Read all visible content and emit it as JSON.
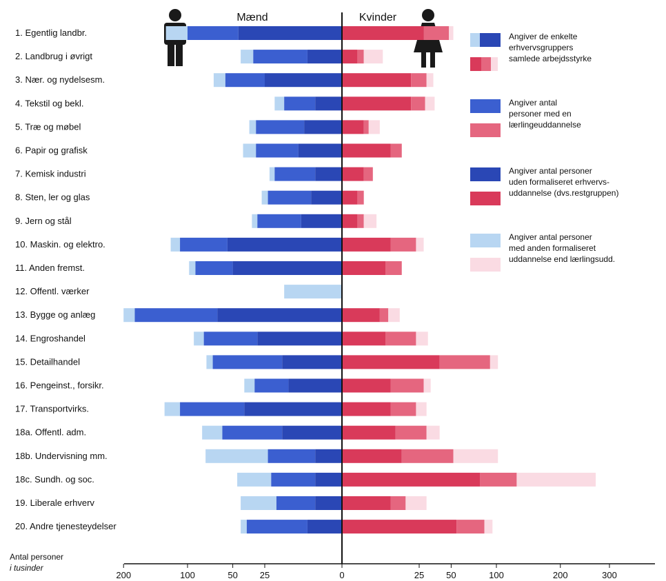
{
  "chart_data": {
    "type": "bar",
    "orientation": "horizontal-diverging",
    "left_title": "Mænd",
    "right_title": "Kvinder",
    "axis_title_line1": "Antal personer",
    "axis_title_line2": "i tusinder",
    "xscale": "sqrt",
    "left_ticks": [
      "200",
      "100",
      "50",
      "25",
      "0"
    ],
    "left_tick_values": [
      200,
      100,
      50,
      25,
      0
    ],
    "right_ticks": [
      "25",
      "50",
      "100",
      "200",
      "300"
    ],
    "right_tick_values": [
      25,
      50,
      100,
      200,
      300
    ],
    "categories": [
      "1. Egentlig landbr.",
      "2. Landbrug i øvrigt",
      "3. Nær. og nydelsesm.",
      "4. Tekstil og bekl.",
      "5. Træ og møbel",
      "6. Papir og grafisk",
      "7. Kemisk industri",
      "8. Sten, ler og glas",
      "9. Jern og stål",
      "10. Maskin. og elektro.",
      "11. Anden fremst.",
      "12. Offentl. værker",
      "13. Bygge og anlæg",
      "14. Engroshandel",
      "15. Detailhandel",
      "16. Pengeinst., forsikr.",
      "17. Transportvirks.",
      "18a. Offentl. adm.",
      "18b. Undervisning mm.",
      "18c. Sundh. og soc.",
      "19. Liberale erhverv",
      "20. Andre tjenesteydelser"
    ],
    "series": [
      {
        "group": "men",
        "component": "restgruppe",
        "values": [
          45,
          5,
          25,
          3,
          6,
          8,
          3,
          4,
          7,
          55,
          50,
          0,
          65,
          30,
          15,
          12,
          40,
          15,
          3,
          3,
          3,
          5
        ]
      },
      {
        "group": "men",
        "component": "laerlingeuddannelse",
        "values": [
          55,
          28,
          32,
          11,
          25,
          23,
          16,
          19,
          23,
          55,
          40,
          0,
          115,
          50,
          55,
          20,
          70,
          45,
          20,
          18,
          15,
          33
        ]
      },
      {
        "group": "men",
        "component": "anden formaliseret uddannelse",
        "values": [
          30,
          10,
          12,
          5,
          5,
          10,
          3,
          4,
          4,
          13,
          8,
          14,
          20,
          12,
          7,
          8,
          22,
          22,
          55,
          25,
          25,
          5
        ]
      },
      {
        "group": "women",
        "component": "restgruppe",
        "values": [
          28,
          1,
          20,
          20,
          2,
          10,
          2,
          1,
          1,
          10,
          8,
          0,
          6,
          8,
          40,
          10,
          10,
          12,
          15,
          80,
          10,
          55
        ]
      },
      {
        "group": "women",
        "component": "laerlingeuddannelse",
        "values": [
          20,
          1,
          10,
          9,
          1,
          5,
          2,
          1,
          1,
          13,
          7,
          0,
          3,
          15,
          52,
          18,
          13,
          18,
          37,
          48,
          7,
          30
        ]
      },
      {
        "group": "women",
        "component": "anden formaliseret uddannelse",
        "values": [
          4,
          5,
          5,
          7,
          3,
          0,
          0,
          0,
          3,
          5,
          0,
          0,
          5,
          8,
          10,
          5,
          7,
          10,
          50,
          142,
          13,
          10
        ]
      }
    ],
    "colors": {
      "men_rest": "#2a47b5",
      "men_laerling": "#3b5fd0",
      "men_anden": "#b8d6f2",
      "women_rest": "#d93a5a",
      "women_laerling": "#e5667f",
      "women_anden": "#fadbe3"
    },
    "legend": [
      {
        "label_lines": [
          "Angiver de enkelte",
          "erhvervsgruppers",
          "samlede arbejdsstyrke"
        ],
        "swatch": "full"
      },
      {
        "label_lines": [
          "Angiver antal",
          "personer med en",
          "lærlingeuddannelse"
        ],
        "swatch": "laerling"
      },
      {
        "label_lines": [
          "Angiver antal personer",
          "uden formaliseret erhvervs-",
          "uddannelse (dvs.restgruppen)"
        ],
        "swatch": "rest"
      },
      {
        "label_lines": [
          "Angiver antal personer",
          "med anden formaliseret",
          "uddannelse end lærlingsudd."
        ],
        "swatch": "anden"
      }
    ],
    "legend_position": "right",
    "grid": false
  }
}
